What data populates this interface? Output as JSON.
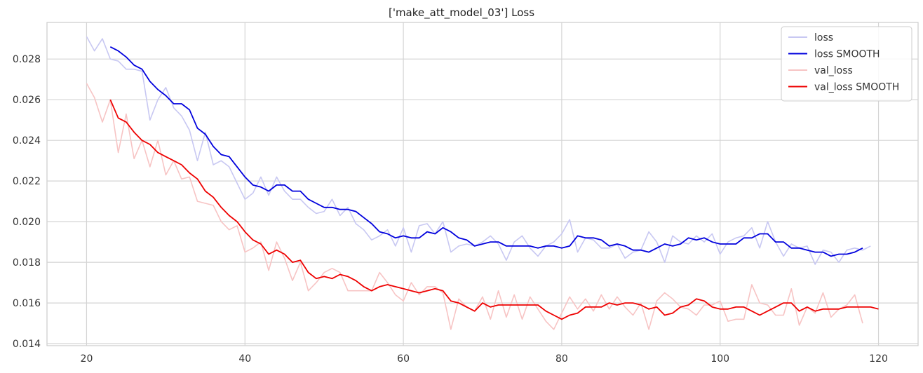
{
  "chart_data": {
    "type": "line",
    "title": "['make_att_model_03'] Loss",
    "xlabel": "",
    "ylabel": "",
    "xlim": [
      15,
      125
    ],
    "ylim": [
      0.0139,
      0.0298
    ],
    "x_ticks": [
      20,
      40,
      60,
      80,
      100,
      120
    ],
    "y_ticks": [
      0.014,
      0.016,
      0.018,
      0.02,
      0.022,
      0.024,
      0.026,
      0.028
    ],
    "grid": true,
    "legend_position": "top-right",
    "series": [
      {
        "name": "loss",
        "color": "#c8c8f2",
        "x_start": 20,
        "values": [
          0.0291,
          0.0284,
          0.029,
          0.028,
          0.0279,
          0.0275,
          0.0275,
          0.0274,
          0.025,
          0.026,
          0.0266,
          0.0256,
          0.0252,
          0.0245,
          0.023,
          0.0244,
          0.0228,
          0.023,
          0.0227,
          0.0219,
          0.0211,
          0.0214,
          0.0222,
          0.0213,
          0.0222,
          0.0215,
          0.0211,
          0.0211,
          0.0207,
          0.0204,
          0.0205,
          0.0211,
          0.0203,
          0.0207,
          0.0199,
          0.0196,
          0.0191,
          0.0193,
          0.0196,
          0.0188,
          0.0197,
          0.0185,
          0.0198,
          0.0199,
          0.0194,
          0.02,
          0.0185,
          0.0188,
          0.0189,
          0.0188,
          0.019,
          0.0193,
          0.0189,
          0.0181,
          0.019,
          0.0193,
          0.0187,
          0.0183,
          0.0188,
          0.019,
          0.0194,
          0.0201,
          0.0185,
          0.0192,
          0.0191,
          0.0187,
          0.0187,
          0.0189,
          0.0182,
          0.0185,
          0.0186,
          0.0195,
          0.019,
          0.018,
          0.0193,
          0.019,
          0.0189,
          0.0193,
          0.019,
          0.0194,
          0.0184,
          0.019,
          0.0192,
          0.0193,
          0.0197,
          0.0187,
          0.02,
          0.019,
          0.0183,
          0.0189,
          0.0187,
          0.0188,
          0.0179,
          0.0186,
          0.0185,
          0.018,
          0.0186,
          0.0187,
          0.0186,
          0.0188
        ]
      },
      {
        "name": "loss SMOOTH",
        "color": "#0000dd",
        "x_start": 23,
        "values": [
          0.0286,
          0.0284,
          0.0281,
          0.0277,
          0.0275,
          0.0269,
          0.0265,
          0.0262,
          0.0258,
          0.0258,
          0.0255,
          0.0246,
          0.0243,
          0.0237,
          0.0233,
          0.0232,
          0.0227,
          0.0222,
          0.0218,
          0.0217,
          0.0215,
          0.0218,
          0.0218,
          0.0215,
          0.0215,
          0.0211,
          0.0209,
          0.0207,
          0.0207,
          0.0206,
          0.0206,
          0.0205,
          0.0202,
          0.0199,
          0.0195,
          0.0194,
          0.0192,
          0.0193,
          0.0192,
          0.0192,
          0.0195,
          0.0194,
          0.0197,
          0.0195,
          0.0192,
          0.0191,
          0.0188,
          0.0189,
          0.019,
          0.019,
          0.0188,
          0.0188,
          0.0188,
          0.0188,
          0.0187,
          0.0188,
          0.0188,
          0.0187,
          0.0188,
          0.0193,
          0.0192,
          0.0192,
          0.0191,
          0.0188,
          0.0189,
          0.0188,
          0.0186,
          0.0186,
          0.0185,
          0.0187,
          0.0189,
          0.0188,
          0.0189,
          0.0192,
          0.0191,
          0.0192,
          0.019,
          0.0189,
          0.0189,
          0.0189,
          0.0192,
          0.0192,
          0.0194,
          0.0194,
          0.019,
          0.019,
          0.0187,
          0.0187,
          0.0186,
          0.0185,
          0.0185,
          0.0183,
          0.0184,
          0.0184,
          0.0185,
          0.0187
        ]
      },
      {
        "name": "val_loss",
        "color": "#f7c4c4",
        "x_start": 20,
        "values": [
          0.0268,
          0.0261,
          0.0249,
          0.026,
          0.0234,
          0.0253,
          0.0231,
          0.024,
          0.0227,
          0.024,
          0.0223,
          0.023,
          0.0221,
          0.0222,
          0.021,
          0.0209,
          0.0208,
          0.02,
          0.0196,
          0.0198,
          0.0185,
          0.0187,
          0.019,
          0.0176,
          0.019,
          0.0182,
          0.0171,
          0.018,
          0.0166,
          0.017,
          0.0175,
          0.0177,
          0.0175,
          0.0166,
          0.0166,
          0.0166,
          0.0166,
          0.0175,
          0.017,
          0.0164,
          0.0161,
          0.017,
          0.0164,
          0.0168,
          0.0168,
          0.0165,
          0.0147,
          0.0162,
          0.0158,
          0.0156,
          0.0163,
          0.0152,
          0.0166,
          0.0153,
          0.0164,
          0.0152,
          0.0163,
          0.0157,
          0.0151,
          0.0147,
          0.0155,
          0.0163,
          0.0157,
          0.0162,
          0.0156,
          0.0164,
          0.0157,
          0.0163,
          0.0158,
          0.0154,
          0.016,
          0.0147,
          0.0161,
          0.0165,
          0.0162,
          0.0158,
          0.0157,
          0.0154,
          0.0159,
          0.0159,
          0.0161,
          0.0151,
          0.0152,
          0.0152,
          0.0169,
          0.016,
          0.0159,
          0.0154,
          0.0154,
          0.0167,
          0.0149,
          0.0158,
          0.0155,
          0.0165,
          0.0153,
          0.0157,
          0.0159,
          0.0164,
          0.015
        ]
      },
      {
        "name": "val_loss SMOOTH",
        "color": "#ee0000",
        "x_start": 23,
        "values": [
          0.026,
          0.0251,
          0.0249,
          0.0244,
          0.024,
          0.0238,
          0.0234,
          0.0232,
          0.023,
          0.0228,
          0.0224,
          0.0221,
          0.0215,
          0.0212,
          0.0207,
          0.0203,
          0.02,
          0.0195,
          0.0191,
          0.0189,
          0.0184,
          0.0186,
          0.0184,
          0.018,
          0.0181,
          0.0175,
          0.0172,
          0.0173,
          0.0172,
          0.0174,
          0.0173,
          0.0171,
          0.0168,
          0.0166,
          0.0168,
          0.0169,
          0.0168,
          0.0167,
          0.0166,
          0.0165,
          0.0166,
          0.0167,
          0.0166,
          0.0161,
          0.016,
          0.0158,
          0.0156,
          0.016,
          0.0158,
          0.0159,
          0.0159,
          0.0159,
          0.0159,
          0.0159,
          0.0159,
          0.0156,
          0.0154,
          0.0152,
          0.0154,
          0.0155,
          0.0158,
          0.0158,
          0.0158,
          0.016,
          0.0159,
          0.016,
          0.016,
          0.0159,
          0.0157,
          0.0158,
          0.0154,
          0.0155,
          0.0158,
          0.0159,
          0.0162,
          0.0161,
          0.0158,
          0.0157,
          0.0157,
          0.0158,
          0.0158,
          0.0156,
          0.0154,
          0.0156,
          0.0158,
          0.016,
          0.016,
          0.0156,
          0.0158,
          0.0156,
          0.0157,
          0.0157,
          0.0157,
          0.0158,
          0.0158,
          0.0158,
          0.0158,
          0.0157
        ]
      }
    ]
  }
}
